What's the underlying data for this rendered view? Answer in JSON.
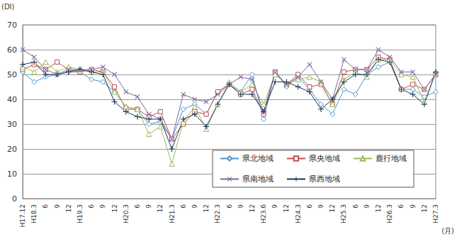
{
  "chart_data": {
    "type": "line",
    "y_label": "(DI)",
    "x_label": "(月)",
    "categories": [
      "H17.12",
      "H18.3",
      "6",
      "9",
      "12",
      "H19.3",
      "6",
      "9",
      "12",
      "H20.3",
      "6",
      "9",
      "12",
      "H21.3",
      "6",
      "9",
      "12",
      "H22.3",
      "6",
      "9",
      "12",
      "H23.6",
      "9",
      "12",
      "H24.3",
      "6",
      "9",
      "12",
      "H25.3",
      "6",
      "9",
      "12",
      "H26.3",
      "6",
      "9",
      "12",
      "H27.3"
    ],
    "ylim": [
      0,
      70
    ],
    "yticks": [
      0,
      10,
      20,
      30,
      40,
      50,
      60,
      70
    ],
    "grid": true,
    "legend": "lower right",
    "series": [
      {
        "name": "県北地域",
        "color": "#4f94cd",
        "marker": "diamond",
        "values": [
          51,
          47,
          49,
          50,
          51,
          51,
          48,
          47,
          43,
          37,
          36,
          30,
          31,
          24,
          36,
          38,
          34,
          43,
          46,
          43,
          50,
          32,
          51,
          45,
          49,
          44,
          38,
          34,
          44,
          42,
          50,
          53,
          55,
          44,
          44,
          41,
          43
        ]
      },
      {
        "name": "県央地域",
        "color": "#c0504d",
        "marker": "square",
        "values": [
          52,
          54,
          52,
          55,
          52,
          51,
          52,
          51,
          45,
          36,
          36,
          33,
          35,
          24,
          30,
          35,
          34,
          43,
          46,
          42,
          44,
          34,
          51,
          46,
          50,
          45,
          46,
          38,
          51,
          52,
          52,
          57,
          56,
          44,
          46,
          44,
          50
        ]
      },
      {
        "name": "鹿行地域",
        "color": "#9bbb59",
        "marker": "triangle",
        "values": [
          53,
          51,
          55,
          51,
          53,
          52,
          51,
          51,
          43,
          37,
          36,
          26,
          29,
          14,
          31,
          37,
          28,
          38,
          47,
          43,
          46,
          38,
          50,
          46,
          48,
          49,
          47,
          38,
          48,
          51,
          49,
          56,
          56,
          50,
          49,
          39,
          51
        ]
      },
      {
        "name": "県南地域",
        "color": "#8064a2",
        "marker": "x",
        "values": [
          60,
          57,
          52,
          50,
          52,
          52,
          52,
          53,
          50,
          43,
          41,
          34,
          32,
          24,
          42,
          40,
          39,
          42,
          46,
          49,
          48,
          35,
          51,
          46,
          49,
          54,
          47,
          40,
          56,
          52,
          52,
          60,
          57,
          51,
          51,
          44,
          50
        ]
      },
      {
        "name": "県西地域",
        "color": "#17375e",
        "marker": "plus",
        "values": [
          54,
          55,
          50,
          50,
          51,
          52,
          51,
          50,
          39,
          35,
          33,
          32,
          32,
          20,
          32,
          34,
          29,
          38,
          46,
          42,
          42,
          35,
          47,
          47,
          45,
          43,
          36,
          40,
          47,
          50,
          50,
          56,
          55,
          44,
          42,
          38,
          51
        ]
      }
    ]
  }
}
